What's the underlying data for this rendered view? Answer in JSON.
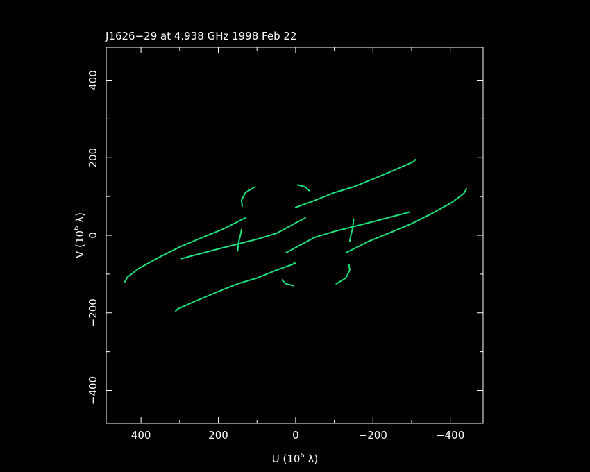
{
  "chart_data": {
    "type": "scatter",
    "title": "J1626−29 at 4.938 GHz 1998 Feb 22",
    "xlabel": {
      "main": "U (10",
      "exp": "6",
      "unit": " λ)"
    },
    "ylabel": {
      "main": "V (10",
      "exp": "6",
      "unit": " λ)"
    },
    "xlim": [
      490,
      -485
    ],
    "ylim": [
      -485,
      485
    ],
    "x_ticks": [
      400,
      200,
      0,
      -200,
      -400
    ],
    "x_tick_labels": [
      "400",
      "200",
      "0",
      "−200",
      "−400"
    ],
    "y_ticks": [
      -400,
      -200,
      0,
      200,
      400
    ],
    "y_tick_labels": [
      "−400",
      "−200",
      "0",
      "200",
      "400"
    ],
    "grid": false,
    "tracks": [
      [
        [
          442,
          -120
        ],
        [
          435,
          -108
        ],
        [
          405,
          -85
        ],
        [
          350,
          -55
        ],
        [
          300,
          -30
        ],
        [
          240,
          -5
        ],
        [
          190,
          15
        ],
        [
          150,
          35
        ],
        [
          130,
          45
        ]
      ],
      [
        [
          -442,
          120
        ],
        [
          -435,
          108
        ],
        [
          -405,
          85
        ],
        [
          -350,
          55
        ],
        [
          -300,
          30
        ],
        [
          -240,
          5
        ],
        [
          -190,
          -15
        ],
        [
          -150,
          -35
        ],
        [
          -130,
          -45
        ]
      ],
      [
        [
          -310,
          195
        ],
        [
          -305,
          190
        ],
        [
          -260,
          170
        ],
        [
          -200,
          145
        ],
        [
          -150,
          125
        ],
        [
          -100,
          110
        ],
        [
          -50,
          90
        ],
        [
          0,
          72
        ],
        [
          -5,
          72
        ]
      ],
      [
        [
          310,
          -195
        ],
        [
          305,
          -190
        ],
        [
          260,
          -170
        ],
        [
          200,
          -145
        ],
        [
          150,
          -125
        ],
        [
          100,
          -110
        ],
        [
          50,
          -90
        ],
        [
          0,
          -72
        ],
        [
          5,
          -72
        ]
      ],
      [
        [
          295,
          -60
        ],
        [
          200,
          -35
        ],
        [
          100,
          -10
        ],
        [
          50,
          5
        ],
        [
          -25,
          45
        ]
      ],
      [
        [
          -295,
          60
        ],
        [
          -200,
          35
        ],
        [
          -100,
          10
        ],
        [
          -50,
          -5
        ],
        [
          25,
          -45
        ]
      ],
      [
        [
          105,
          125
        ],
        [
          130,
          110
        ],
        [
          140,
          90
        ],
        [
          138,
          75
        ]
      ],
      [
        [
          -105,
          -125
        ],
        [
          -130,
          -110
        ],
        [
          -140,
          -90
        ],
        [
          -138,
          -75
        ]
      ],
      [
        [
          -5,
          130
        ],
        [
          -25,
          125
        ],
        [
          -35,
          115
        ]
      ],
      [
        [
          5,
          -130
        ],
        [
          25,
          -125
        ],
        [
          35,
          -115
        ]
      ],
      [
        [
          150,
          -40
        ],
        [
          148,
          -20
        ],
        [
          143,
          0
        ],
        [
          140,
          15
        ]
      ],
      [
        [
          -150,
          40
        ],
        [
          -148,
          20
        ],
        [
          -143,
          0
        ],
        [
          -140,
          -15
        ]
      ]
    ],
    "color": "#1ee07a"
  }
}
